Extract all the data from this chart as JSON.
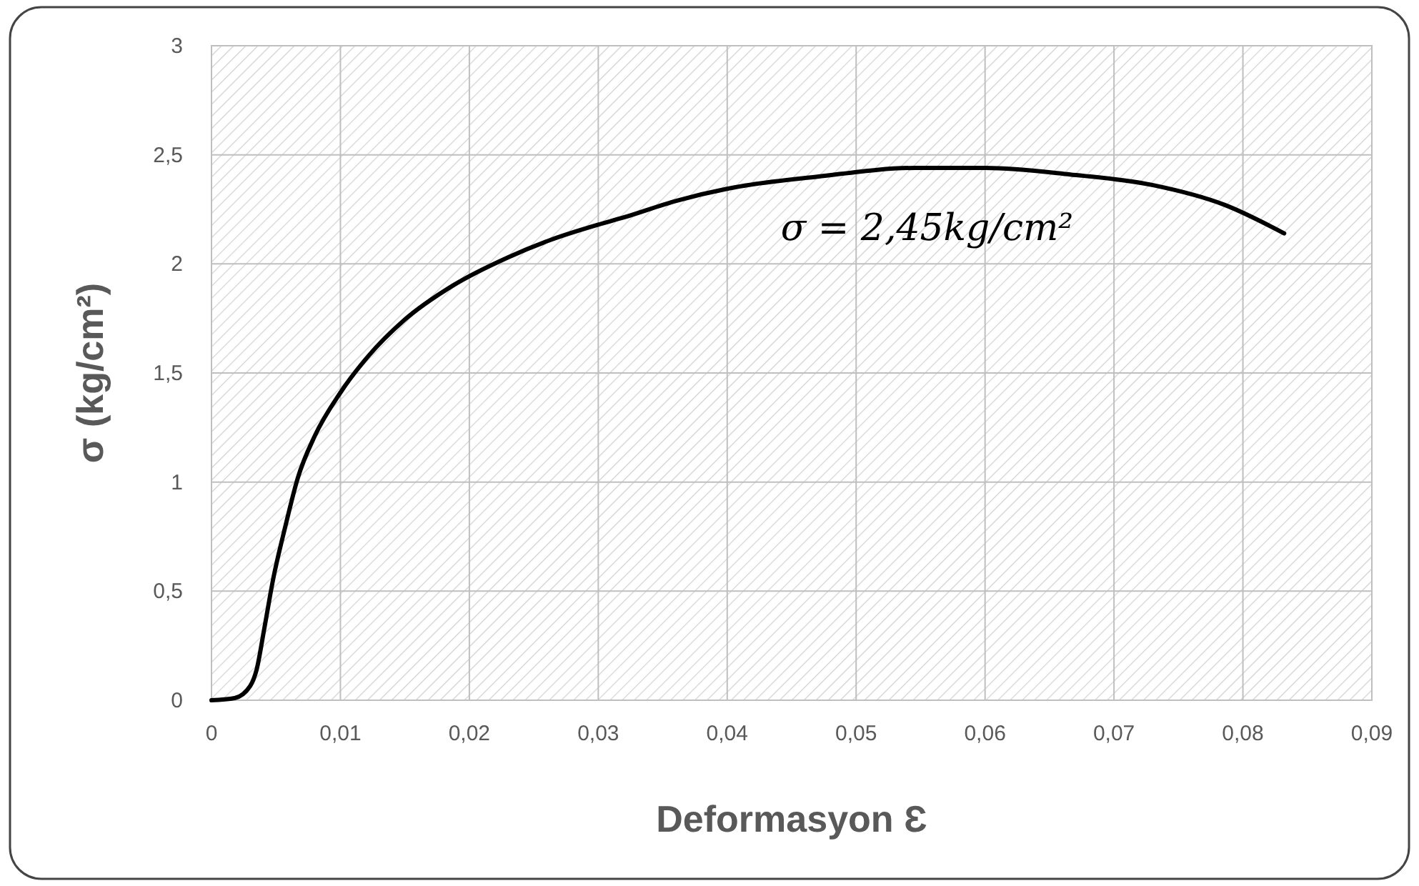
{
  "chart_data": {
    "type": "line",
    "xlabel": "Deformasyon Ɛ",
    "ylabel": "σ (kg/cm²)",
    "x": [
      0,
      0.0018,
      0.003,
      0.0035,
      0.0041,
      0.0048,
      0.0057,
      0.0067,
      0.008,
      0.01,
      0.0122,
      0.0149,
      0.0187,
      0.023,
      0.0263,
      0.03,
      0.0318,
      0.0361,
      0.0405,
      0.047,
      0.0546,
      0.06,
      0.0666,
      0.0731,
      0.0786,
      0.0832
    ],
    "series": [
      {
        "color": "#000000",
        "values": [
          0,
          0.01,
          0.065,
          0.14,
          0.33,
          0.56,
          0.79,
          1.02,
          1.21,
          1.41,
          1.58,
          1.74,
          1.9,
          2.03,
          2.11,
          2.18,
          2.21,
          2.29,
          2.35,
          2.4,
          2.44,
          2.44,
          2.41,
          2.36,
          2.27,
          2.14
        ]
      }
    ],
    "xlim": [
      0,
      0.09
    ],
    "xticks": [
      0,
      {
        "value": 0.01,
        "label": "0,01"
      },
      {
        "value": 0.02,
        "label": "0,02"
      },
      {
        "value": 0.03,
        "label": "0,03"
      },
      {
        "value": 0.04,
        "label": "0,04"
      },
      {
        "value": 0.05,
        "label": "0,05"
      },
      {
        "value": 0.06,
        "label": "0,06"
      },
      {
        "value": 0.07,
        "label": "0,07"
      },
      {
        "value": 0.08,
        "label": "0,08"
      },
      {
        "value": 0.09,
        "label": "0,09"
      }
    ],
    "ylim": [
      0,
      3
    ],
    "yticks": [
      0,
      {
        "value": 0.5,
        "label": "0,5"
      },
      1,
      {
        "value": 1.5,
        "label": "1,5"
      },
      2,
      {
        "value": 2.5,
        "label": "2,5"
      },
      3
    ],
    "grid": true,
    "marker": "none",
    "line_style": "solid",
    "annotations": [
      {
        "text": "σ = 2,45kg/cm²",
        "x": 0.0555,
        "y": 2.45
      }
    ]
  }
}
